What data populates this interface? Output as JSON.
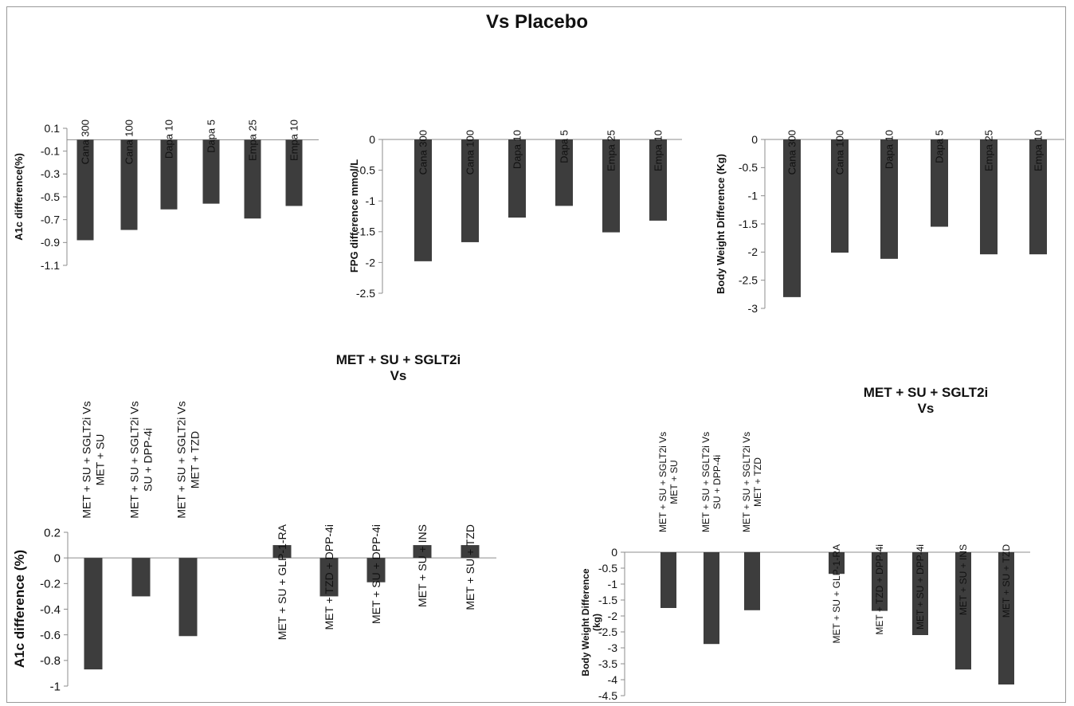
{
  "title": "Vs Placebo",
  "group_title_line1": "MET + SU + SGLT2i",
  "group_title_line2": "Vs",
  "colors": {
    "bar": "#3d3d3d",
    "axis": "#8c8c8c",
    "frame": "#9a9a9a"
  },
  "chart_data": [
    {
      "id": "a1c-placebo",
      "type": "bar",
      "categories": [
        "Cana 300",
        "Cana 100",
        "Dapa 10",
        "Dapa 5",
        "Empa 25",
        "Empa 10"
      ],
      "values": [
        -0.88,
        -0.79,
        -0.61,
        -0.56,
        -0.69,
        -0.58
      ],
      "ylabel": "A1c difference(%)",
      "ylim": [
        -1.1,
        0.1
      ],
      "yticks": [
        0.1,
        -0.1,
        -0.3,
        -0.5,
        -0.7,
        -0.9,
        -1.1
      ],
      "ytick_labels": [
        "0.1",
        "-0.1",
        "-0.3",
        "-0.5",
        "-0.7",
        "-0.9",
        "-1.1"
      ],
      "grid": false
    },
    {
      "id": "fpg-placebo",
      "type": "bar",
      "categories": [
        "Cana 300",
        "Cana 100",
        "Dapa 10",
        "Dapa 5",
        "Empa 25",
        "Empa 10"
      ],
      "values": [
        -1.98,
        -1.67,
        -1.27,
        -1.08,
        -1.51,
        -1.32
      ],
      "ylabel": "FPG difference mmol/L",
      "ylim": [
        -2.5,
        0
      ],
      "yticks": [
        0,
        -0.5,
        -1,
        -1.5,
        -2,
        -2.5
      ],
      "ytick_labels": [
        "0",
        "-0.5",
        "-1",
        "-1.5",
        "-2",
        "-2.5"
      ],
      "grid": false
    },
    {
      "id": "weight-placebo",
      "type": "bar",
      "categories": [
        "Cana 300",
        "Cana 100",
        "Dapa 10",
        "Dapa 5",
        "Empa 25",
        "Empa 10"
      ],
      "values": [
        -2.8,
        -2.01,
        -2.12,
        -1.55,
        -2.04,
        -2.04
      ],
      "ylabel": "Body Weight Difference (Kg)",
      "ylim": [
        -3,
        0
      ],
      "yticks": [
        0,
        -0.5,
        -1,
        -1.5,
        -2,
        -2.5,
        -3
      ],
      "ytick_labels": [
        "0",
        "-0.5",
        "-1",
        "-1.5",
        "-2",
        "-2.5",
        "-3"
      ],
      "grid": false
    },
    {
      "id": "a1c-sglt2i",
      "type": "bar",
      "categories": [
        [
          "MET + SU + SGLT2i Vs",
          "MET + SU"
        ],
        [
          "MET + SU + SGLT2i Vs",
          "SU + DPP-4i"
        ],
        [
          "MET + SU + SGLT2i Vs",
          "MET + TZD"
        ],
        [
          "MET + SU + GLP-1-RA"
        ],
        [
          "MET + TZD + DPP-4i"
        ],
        [
          "MET + SU + DPP-4i"
        ],
        [
          "MET + SU + INS"
        ],
        [
          "MET + SU + TZD"
        ]
      ],
      "values": [
        -0.87,
        -0.3,
        -0.61,
        0.1,
        -0.3,
        -0.19,
        0.1,
        0.1
      ],
      "ylabel": "A1c difference (%)",
      "ylim": [
        -1,
        0.2
      ],
      "yticks": [
        0.2,
        0,
        -0.2,
        -0.4,
        -0.6,
        -0.8,
        -1
      ],
      "ytick_labels": [
        "0.2",
        "0",
        "-0.2",
        "-0.4",
        "-0.6",
        "-0.8",
        "-1"
      ],
      "grid": false
    },
    {
      "id": "weight-sglt2i",
      "type": "bar",
      "categories": [
        [
          "MET + SU + SGLT2i Vs",
          "MET + SU"
        ],
        [
          "MET + SU + SGLT2i Vs",
          "SU + DPP-4i"
        ],
        [
          "MET + SU + SGLT2i Vs",
          "MET + TZD"
        ],
        [
          "MET + SU + GLP-1-RA"
        ],
        [
          "MET + TZD + DPP-4i"
        ],
        [
          "MET + SU + DPP-4i"
        ],
        [
          "MET + SU + INS"
        ],
        [
          "MET + SU + TZD"
        ]
      ],
      "values": [
        -1.75,
        -2.88,
        -1.82,
        -0.68,
        -1.84,
        -2.6,
        -3.68,
        -4.15
      ],
      "ylabel": [
        "Body Weight Difference",
        "(kg)"
      ],
      "ylim": [
        -4.5,
        0
      ],
      "yticks": [
        0,
        -0.5,
        -1,
        -1.5,
        -2,
        -2.5,
        -3,
        -3.5,
        -4,
        -4.5
      ],
      "ytick_labels": [
        "0",
        "-0.5",
        "-1",
        "-1.5",
        "-2",
        "-2.5",
        "-3",
        "-3.5",
        "-4",
        "-4.5"
      ],
      "grid": false
    }
  ]
}
